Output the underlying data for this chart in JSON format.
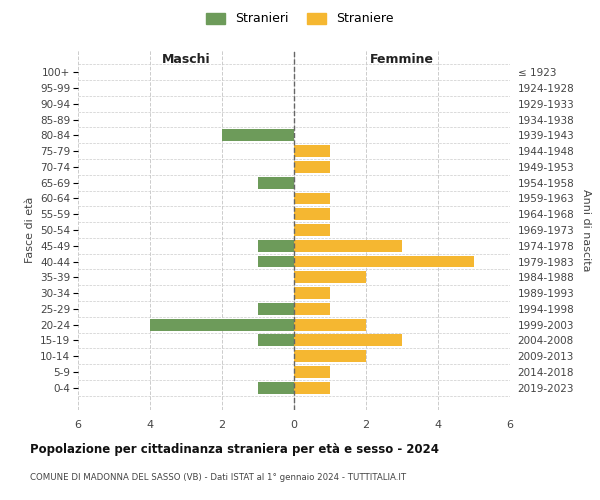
{
  "age_groups": [
    "100+",
    "95-99",
    "90-94",
    "85-89",
    "80-84",
    "75-79",
    "70-74",
    "65-69",
    "60-64",
    "55-59",
    "50-54",
    "45-49",
    "40-44",
    "35-39",
    "30-34",
    "25-29",
    "20-24",
    "15-19",
    "10-14",
    "5-9",
    "0-4"
  ],
  "birth_years": [
    "≤ 1923",
    "1924-1928",
    "1929-1933",
    "1934-1938",
    "1939-1943",
    "1944-1948",
    "1949-1953",
    "1954-1958",
    "1959-1963",
    "1964-1968",
    "1969-1973",
    "1974-1978",
    "1979-1983",
    "1984-1988",
    "1989-1993",
    "1994-1998",
    "1999-2003",
    "2004-2008",
    "2009-2013",
    "2014-2018",
    "2019-2023"
  ],
  "males": [
    0,
    0,
    0,
    0,
    2,
    0,
    0,
    1,
    0,
    0,
    0,
    1,
    1,
    0,
    0,
    1,
    4,
    1,
    0,
    0,
    1
  ],
  "females": [
    0,
    0,
    0,
    0,
    0,
    1,
    1,
    0,
    1,
    1,
    1,
    3,
    5,
    2,
    1,
    1,
    2,
    3,
    2,
    1,
    1
  ],
  "male_color": "#6d9b5a",
  "female_color": "#f5b731",
  "grid_color": "#cccccc",
  "center_line_color": "#666666",
  "xlim": 6,
  "xlabel_left": "Maschi",
  "xlabel_right": "Femmine",
  "ylabel": "Fasce di età",
  "ylabel_right": "Anni di nascita",
  "title": "Popolazione per cittadinanza straniera per età e sesso - 2024",
  "subtitle": "COMUNE DI MADONNA DEL SASSO (VB) - Dati ISTAT al 1° gennaio 2024 - TUTTITALIA.IT",
  "legend_male": "Stranieri",
  "legend_female": "Straniere",
  "background_color": "#ffffff",
  "bar_height": 0.75
}
